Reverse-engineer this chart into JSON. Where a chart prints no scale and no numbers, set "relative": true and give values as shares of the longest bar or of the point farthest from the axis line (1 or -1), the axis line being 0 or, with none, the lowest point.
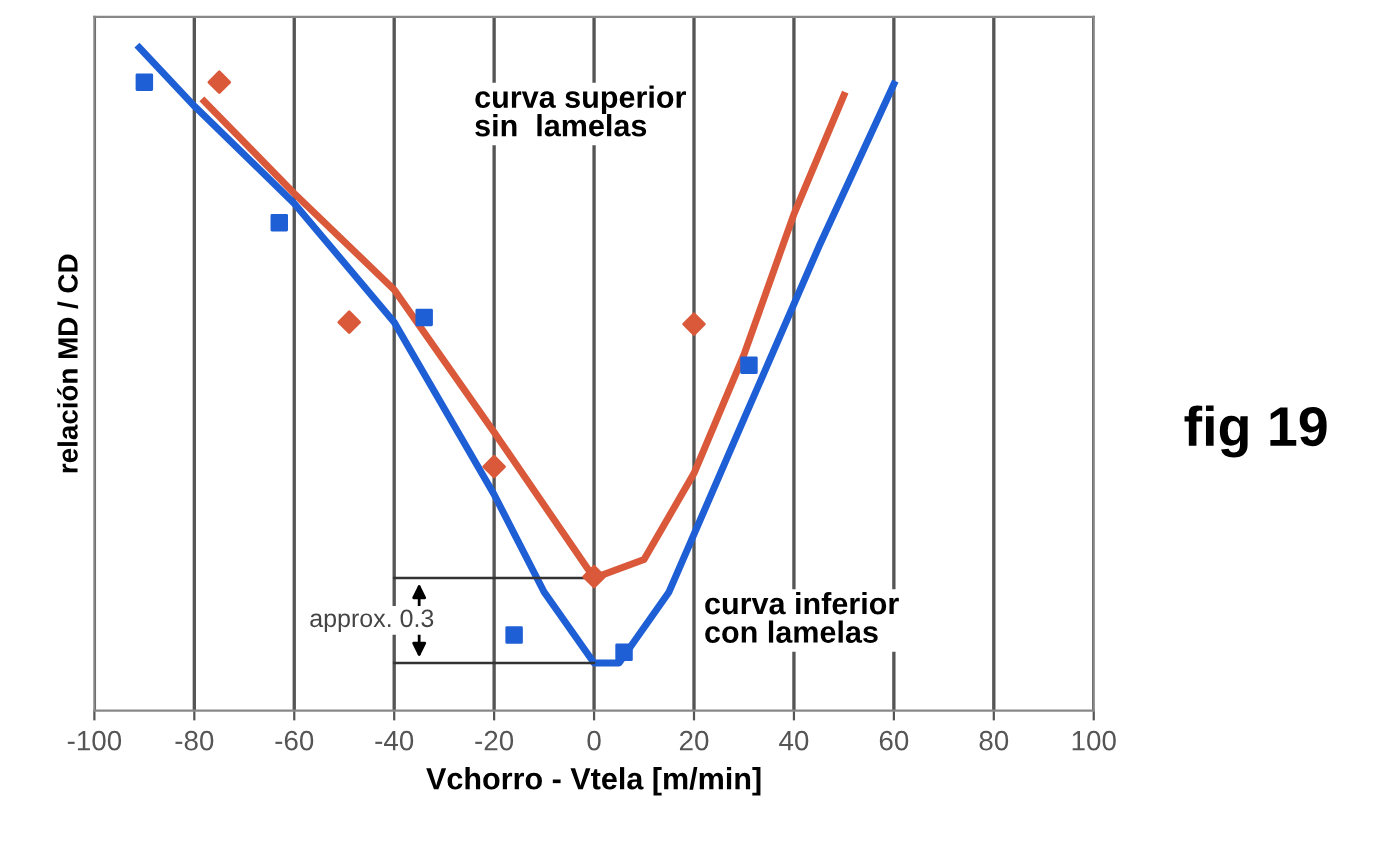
{
  "chart_data": {
    "type": "line",
    "relative": true,
    "xlabel": "Vchorro - Vtela [m/min]",
    "ylabel": "relación MD / CD",
    "xlim": [
      -100,
      100
    ],
    "xticks": [
      -100,
      -80,
      -60,
      -40,
      -20,
      0,
      20,
      40,
      60,
      80,
      100
    ],
    "grid": "x",
    "series": [
      {
        "color": "#d9593a",
        "marker": "none",
        "x": [
          -78,
          -60,
          -40,
          -20,
          0,
          10,
          20,
          30,
          40,
          50
        ],
        "values": [
          0.919,
          0.78,
          0.635,
          0.42,
          0.2,
          0.228,
          0.358,
          0.537,
          0.749,
          0.928
        ]
      },
      {
        "color": "#1f5fd6",
        "marker": "none",
        "x": [
          -91,
          -80,
          -60,
          -40,
          -20,
          -10,
          0,
          5,
          15,
          30,
          45,
          60
        ],
        "values": [
          1.0,
          0.912,
          0.765,
          0.586,
          0.326,
          0.179,
          0.072,
          0.072,
          0.179,
          0.44,
          0.7,
          0.945
        ]
      },
      {
        "type": "scatter",
        "color": "#d9593a",
        "marker": "diamond",
        "x": [
          -75,
          -49,
          -20,
          0,
          20
        ],
        "values": [
          0.948,
          0.586,
          0.368,
          0.202,
          0.583
        ]
      },
      {
        "type": "scatter",
        "color": "#1f5fd6",
        "marker": "square",
        "x": [
          -90,
          -63,
          -34,
          -16,
          6,
          31
        ],
        "values": [
          0.948,
          0.736,
          0.593,
          0.114,
          0.088,
          0.521
        ]
      }
    ],
    "annotations": [
      "curva superior\nsin  lamelas",
      "curva inferior\ncon lamelas",
      "approx. 0.3",
      "fig 19"
    ]
  }
}
